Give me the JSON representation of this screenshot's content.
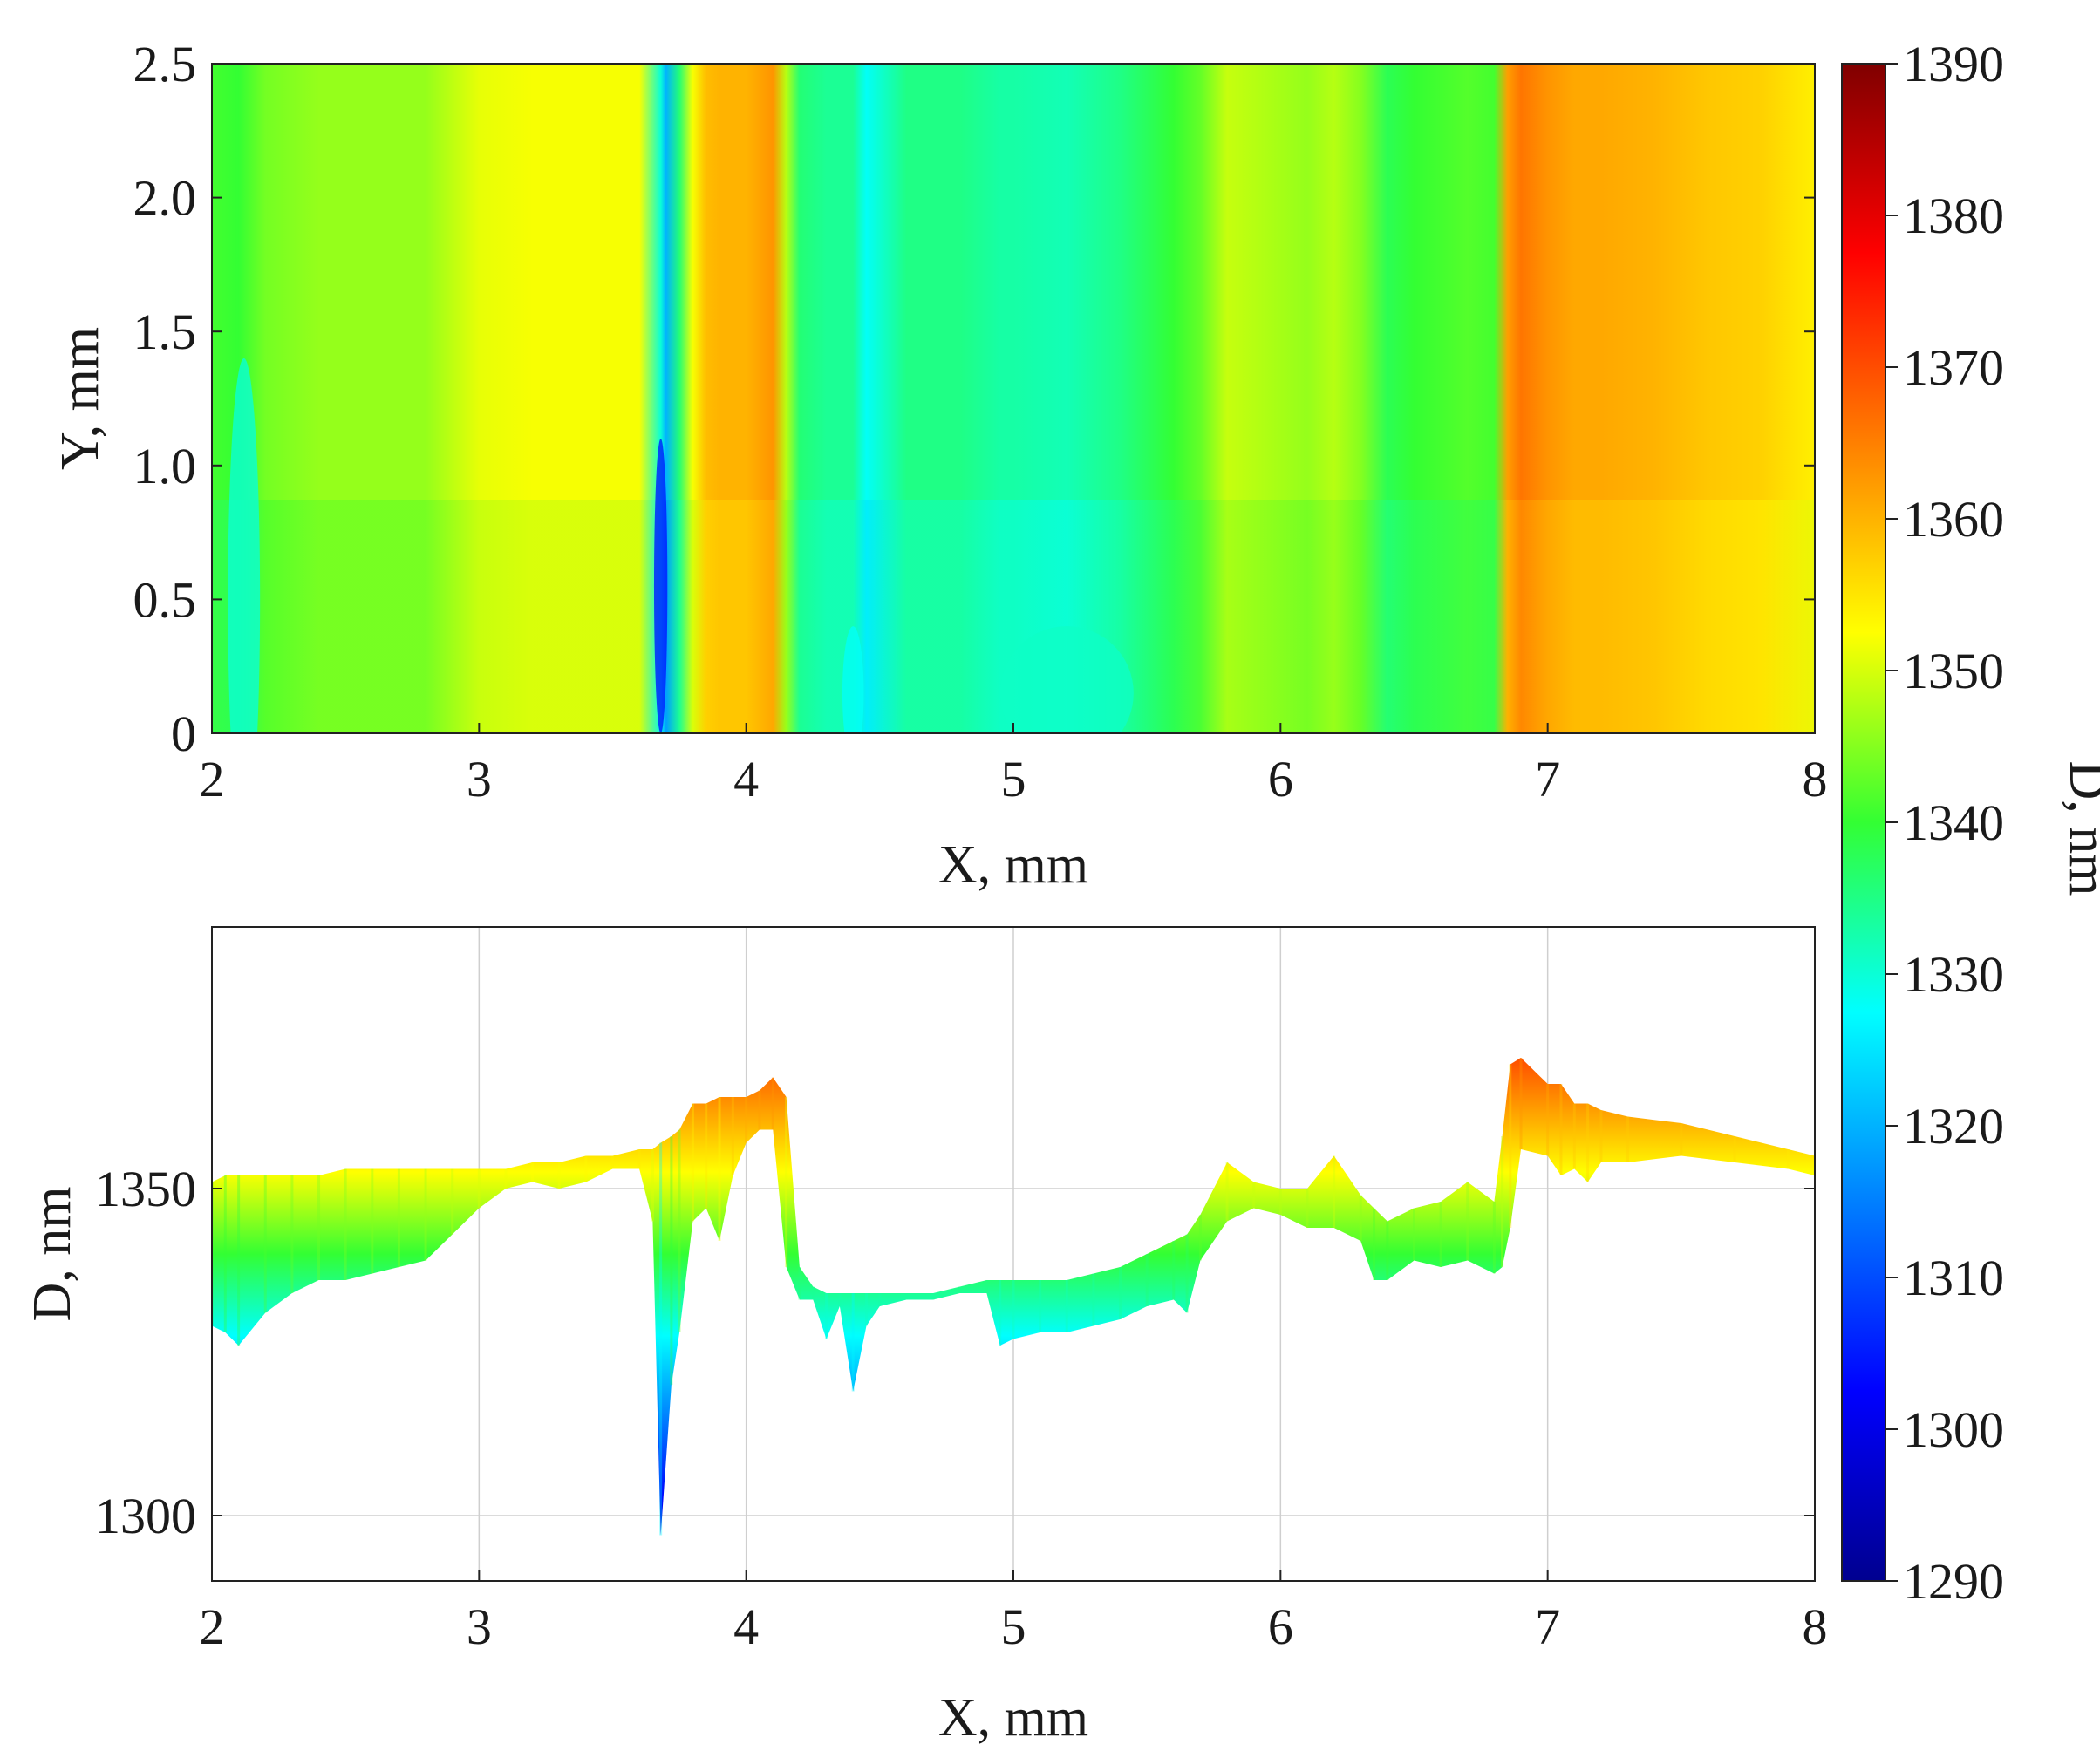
{
  "chart_data": [
    {
      "type": "heatmap",
      "xlabel": "X, mm",
      "ylabel": "Y, mm",
      "xlim": [
        2,
        8
      ],
      "ylim": [
        0,
        2.5
      ],
      "xticks": [
        "2",
        "3",
        "4",
        "5",
        "6",
        "7",
        "8"
      ],
      "yticks": [
        "0",
        "0.5",
        "1.0",
        "1.5",
        "2.0",
        "2.5"
      ],
      "colormap": "jet",
      "colorbar": {
        "label": "D, nm",
        "range": [
          1290,
          1390
        ],
        "ticks": [
          "1290",
          "1300",
          "1310",
          "1320",
          "1330",
          "1340",
          "1350",
          "1360",
          "1370",
          "1380",
          "1390"
        ]
      },
      "profile_x": [
        2.0,
        2.1,
        2.2,
        2.4,
        2.6,
        2.8,
        3.0,
        3.2,
        3.4,
        3.6,
        3.68,
        3.7,
        3.75,
        3.8,
        3.85,
        3.9,
        4.0,
        4.1,
        4.15,
        4.2,
        4.3,
        4.4,
        4.45,
        4.6,
        4.8,
        4.95,
        5.0,
        5.2,
        5.4,
        5.6,
        5.7,
        5.8,
        5.9,
        6.0,
        6.1,
        6.2,
        6.3,
        6.4,
        6.5,
        6.6,
        6.7,
        6.8,
        6.85,
        6.9,
        7.0,
        7.1,
        7.2,
        7.4,
        7.6,
        7.8,
        8.0
      ],
      "profile_d": [
        1341,
        1340,
        1344,
        1346,
        1346,
        1346,
        1351,
        1352,
        1352,
        1352,
        1330,
        1320,
        1336,
        1352,
        1359,
        1360,
        1360,
        1363,
        1348,
        1336,
        1334,
        1334,
        1328,
        1335,
        1335,
        1333,
        1333,
        1332,
        1335,
        1340,
        1343,
        1349,
        1348,
        1347,
        1346,
        1348,
        1345,
        1338,
        1340,
        1341,
        1342,
        1341,
        1362,
        1366,
        1363,
        1361,
        1361,
        1360,
        1358,
        1357,
        1354
      ]
    },
    {
      "type": "area",
      "xlabel": "X, mm",
      "ylabel": "D, nm",
      "xlim": [
        2,
        8
      ],
      "ylim": [
        1290,
        1390
      ],
      "xticks": [
        "2",
        "3",
        "4",
        "5",
        "6",
        "7",
        "8"
      ],
      "yticks": [
        "1300",
        "1350"
      ],
      "ytick_values": [
        1300,
        1350
      ],
      "grid": true,
      "x": [
        2.0,
        2.05,
        2.1,
        2.2,
        2.3,
        2.4,
        2.5,
        2.6,
        2.7,
        2.8,
        2.9,
        3.0,
        3.1,
        3.2,
        3.3,
        3.4,
        3.5,
        3.6,
        3.65,
        3.68,
        3.72,
        3.75,
        3.8,
        3.85,
        3.9,
        3.95,
        4.0,
        4.05,
        4.1,
        4.15,
        4.2,
        4.25,
        4.3,
        4.35,
        4.4,
        4.45,
        4.5,
        4.6,
        4.7,
        4.8,
        4.9,
        4.95,
        5.0,
        5.1,
        5.2,
        5.3,
        5.4,
        5.5,
        5.6,
        5.65,
        5.7,
        5.8,
        5.9,
        6.0,
        6.1,
        6.2,
        6.3,
        6.35,
        6.4,
        6.5,
        6.6,
        6.7,
        6.8,
        6.83,
        6.86,
        6.9,
        7.0,
        7.05,
        7.1,
        7.15,
        7.2,
        7.3,
        7.5,
        7.7,
        7.9,
        8.0
      ],
      "d_max": [
        1351,
        1352,
        1352,
        1352,
        1352,
        1352,
        1353,
        1353,
        1353,
        1353,
        1353,
        1353,
        1353,
        1354,
        1354,
        1355,
        1355,
        1356,
        1356,
        1357,
        1358,
        1359,
        1363,
        1363,
        1364,
        1364,
        1364,
        1365,
        1367,
        1364,
        1338,
        1335,
        1334,
        1334,
        1334,
        1334,
        1334,
        1334,
        1334,
        1335,
        1336,
        1336,
        1336,
        1336,
        1336,
        1337,
        1338,
        1340,
        1342,
        1343,
        1346,
        1354,
        1351,
        1350,
        1350,
        1355,
        1349,
        1347,
        1345,
        1347,
        1348,
        1351,
        1348,
        1358,
        1369,
        1370,
        1366,
        1366,
        1363,
        1363,
        1362,
        1361,
        1360,
        1358,
        1356,
        1355
      ],
      "d_min": [
        1329,
        1328,
        1326,
        1331,
        1334,
        1336,
        1336,
        1337,
        1338,
        1339,
        1343,
        1347,
        1350,
        1351,
        1350,
        1351,
        1353,
        1353,
        1345,
        1297,
        1320,
        1328,
        1345,
        1347,
        1342,
        1352,
        1357,
        1359,
        1359,
        1338,
        1333,
        1333,
        1327,
        1332,
        1319,
        1329,
        1332,
        1333,
        1333,
        1334,
        1334,
        1326,
        1327,
        1328,
        1328,
        1329,
        1330,
        1332,
        1333,
        1331,
        1339,
        1345,
        1347,
        1346,
        1344,
        1344,
        1342,
        1336,
        1336,
        1339,
        1338,
        1339,
        1337,
        1338,
        1344,
        1356,
        1355,
        1352,
        1353,
        1351,
        1354,
        1354,
        1355,
        1354,
        1353,
        1352
      ]
    }
  ]
}
